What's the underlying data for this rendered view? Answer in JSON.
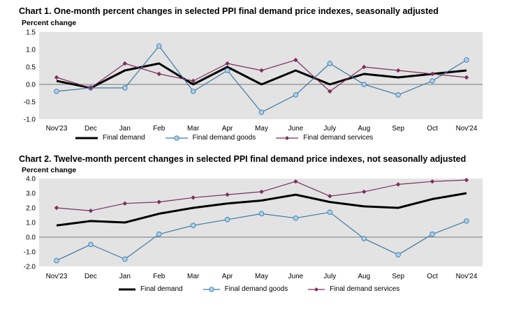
{
  "chart_data": [
    {
      "type": "line",
      "title": "Chart 1. One-month percent changes in selected PPI final demand price indexes, seasonally adjusted",
      "ylabel": "Percent change",
      "xlabel": "",
      "categories": [
        "Nov'23",
        "Dec",
        "Jan",
        "Feb",
        "Mar",
        "Apr",
        "May",
        "June",
        "July",
        "Aug",
        "Sep",
        "Oct",
        "Nov'24"
      ],
      "ylim": [
        -1.0,
        1.5
      ],
      "yticks": [
        "1.5",
        "1.0",
        "0.5",
        "0.0",
        "-0.5",
        "-1.0"
      ],
      "ytick_values": [
        1.5,
        1.0,
        0.5,
        0.0,
        -0.5,
        -1.0
      ],
      "grid": false,
      "legend_position": "bottom",
      "series": [
        {
          "name": "Final demand",
          "values": [
            0.1,
            -0.1,
            0.4,
            0.6,
            0.0,
            0.5,
            0.0,
            0.4,
            0.0,
            0.3,
            0.2,
            0.3,
            0.4
          ],
          "color": "#000000",
          "marker": "none"
        },
        {
          "name": "Final demand goods",
          "values": [
            -0.2,
            -0.1,
            -0.1,
            1.1,
            -0.2,
            0.4,
            -0.8,
            -0.3,
            0.6,
            0.0,
            -0.3,
            0.1,
            0.7
          ],
          "color": "#3d7aa3",
          "marker": "circle"
        },
        {
          "name": "Final demand services",
          "values": [
            0.2,
            -0.1,
            0.6,
            0.3,
            0.1,
            0.6,
            0.4,
            0.7,
            -0.2,
            0.5,
            0.4,
            0.3,
            0.2
          ],
          "color": "#7b2f5e",
          "marker": "diamond"
        }
      ]
    },
    {
      "type": "line",
      "title": "Chart 2. Twelve-month percent changes in selected PPI final demand price indexes, not seasonally adjusted",
      "ylabel": "Percent change",
      "xlabel": "",
      "categories": [
        "Nov'23",
        "Dec",
        "Jan",
        "Feb",
        "Mar",
        "Apr",
        "May",
        "June",
        "July",
        "Aug",
        "Sep",
        "Oct",
        "Nov'24"
      ],
      "ylim": [
        -2.0,
        4.0
      ],
      "yticks": [
        "4.0",
        "3.0",
        "2.0",
        "1.0",
        "0.0",
        "-1.0",
        "-2.0"
      ],
      "ytick_values": [
        4.0,
        3.0,
        2.0,
        1.0,
        0.0,
        -1.0,
        -2.0
      ],
      "grid": false,
      "legend_position": "bottom",
      "series": [
        {
          "name": "Final demand",
          "values": [
            0.8,
            1.1,
            1.0,
            1.6,
            2.0,
            2.3,
            2.5,
            2.9,
            2.4,
            2.1,
            2.0,
            2.6,
            3.0
          ],
          "color": "#000000",
          "marker": "none"
        },
        {
          "name": "Final demand goods",
          "values": [
            -1.6,
            -0.5,
            -1.5,
            0.2,
            0.8,
            1.2,
            1.6,
            1.3,
            1.7,
            -0.1,
            -1.2,
            0.2,
            1.1
          ],
          "color": "#3d7aa3",
          "marker": "circle"
        },
        {
          "name": "Final demand services",
          "values": [
            2.0,
            1.8,
            2.3,
            2.4,
            2.7,
            2.9,
            3.1,
            3.8,
            2.8,
            3.1,
            3.6,
            3.8,
            3.9
          ],
          "color": "#7b2f5e",
          "marker": "diamond"
        }
      ]
    }
  ]
}
